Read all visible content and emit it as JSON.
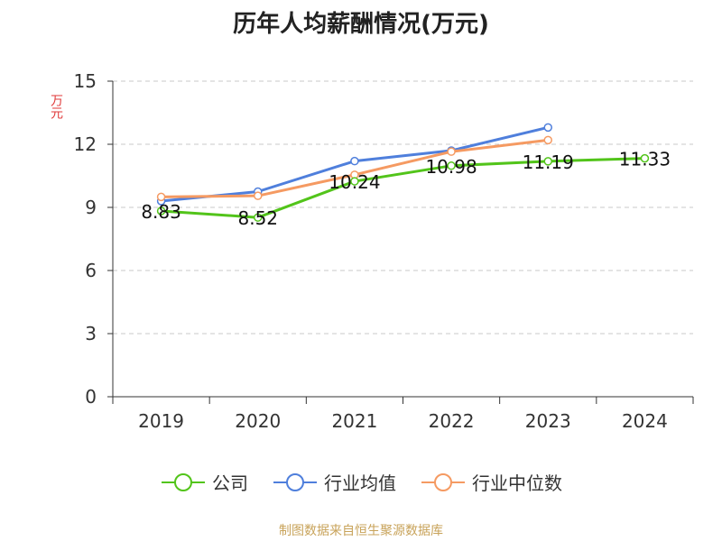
{
  "chart_data": {
    "type": "line",
    "title": "历年人均薪酬情况(万元)",
    "ylabel": "万元",
    "xlabel": "",
    "categories": [
      "2019",
      "2020",
      "2021",
      "2022",
      "2023",
      "2024"
    ],
    "ylim": [
      0,
      15
    ],
    "yticks": [
      "0",
      "3",
      "6",
      "9",
      "12",
      "15"
    ],
    "grid": true,
    "legend_position": "bottom",
    "series": [
      {
        "name": "公司",
        "color": "#52c41a",
        "values": [
          8.83,
          8.52,
          10.24,
          10.98,
          11.19,
          11.33
        ],
        "labels": [
          "8.83",
          "8.52",
          "10.24",
          "10.98",
          "11.19",
          "11.33"
        ]
      },
      {
        "name": "行业均值",
        "color": "#4f7fdc",
        "values": [
          9.3,
          9.75,
          11.2,
          11.7,
          12.8,
          null
        ]
      },
      {
        "name": "行业中位数",
        "color": "#f59a62",
        "values": [
          9.5,
          9.55,
          10.55,
          11.65,
          12.2,
          null
        ]
      }
    ]
  },
  "footer": "制图数据来自恒生聚源数据库"
}
